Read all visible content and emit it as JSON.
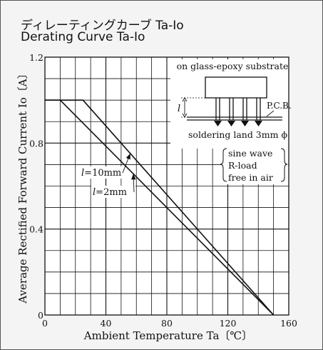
{
  "chart_data": {
    "type": "line",
    "title_jp": "ディレーティングカーブ Ta-Io",
    "title": "Derating Curve Ta-Io",
    "xlabel": "Ambient Temperature Ta〔℃〕",
    "ylabel": "Average Rectified Forward Current Io〔A〕",
    "xlim": [
      0,
      160
    ],
    "ylim": [
      0,
      1.2
    ],
    "x_ticks": [
      0,
      40,
      80,
      120,
      160
    ],
    "y_ticks": [
      0,
      0.4,
      0.8,
      1.2
    ],
    "x_tick_labels": [
      "0",
      "40",
      "80",
      "120",
      "160"
    ],
    "y_tick_labels": [
      "0",
      "0.4",
      "0.8",
      "1.2"
    ],
    "grid": true,
    "series": [
      {
        "name": "l=10mm",
        "x": [
          0,
          25,
          150
        ],
        "y": [
          1.0,
          1.0,
          0.0
        ]
      },
      {
        "name": "l=2mm",
        "x": [
          0,
          10,
          150
        ],
        "y": [
          1.0,
          1.0,
          0.0
        ]
      }
    ],
    "annotations": {
      "substrate": "on glass-epoxy substrate",
      "pcb": "P.C.B.",
      "land": "soldering land 3mm ϕ",
      "l_mark": "l",
      "conditions": [
        "sine wave",
        "R-load",
        "free in air"
      ]
    }
  }
}
